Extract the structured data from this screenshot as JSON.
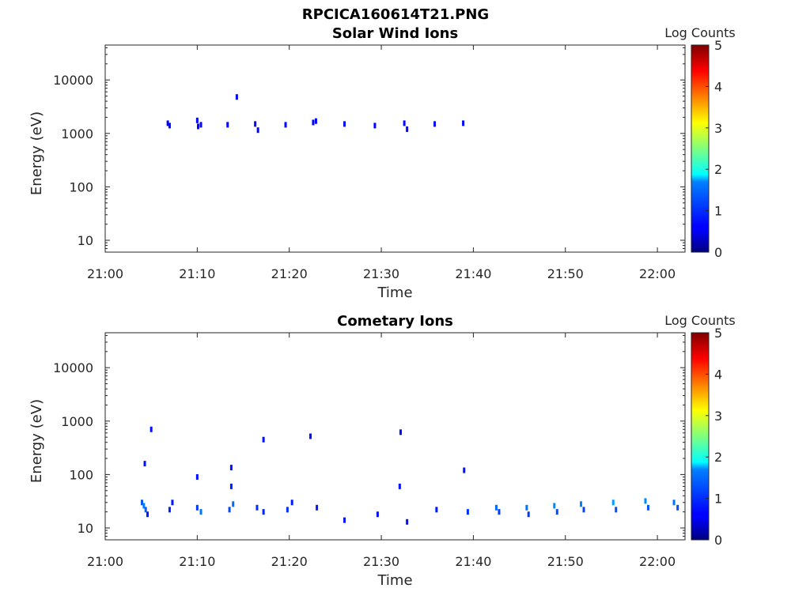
{
  "figure": {
    "title": "RPCICA160614T21.PNG"
  },
  "colormap": "jet",
  "chart_data": [
    {
      "type": "heatmap",
      "title": "Solar Wind Ions",
      "xlabel": "Time",
      "ylabel": "Energy (eV)",
      "x_ticks": [
        "21:00",
        "21:10",
        "21:20",
        "21:30",
        "21:40",
        "21:50",
        "22:00"
      ],
      "y_ticks": [
        "10",
        "100",
        "1000",
        "10000"
      ],
      "y_scale": "log",
      "xlim": [
        "21:00",
        "22:03"
      ],
      "ylim": [
        6,
        45000
      ],
      "colorbar": {
        "label": "Log Counts",
        "ticks": [
          "0",
          "1",
          "2",
          "3",
          "4",
          "5"
        ],
        "range": [
          0,
          5
        ]
      },
      "cells": [
        {
          "t": "21:06.8",
          "e": 1550,
          "c": 0.1
        },
        {
          "t": "21:07.0",
          "e": 1400,
          "c": 0.1
        },
        {
          "t": "21:10.0",
          "e": 1750,
          "c": 0.1
        },
        {
          "t": "21:10.1",
          "e": 1350,
          "c": 0.1
        },
        {
          "t": "21:10.4",
          "e": 1450,
          "c": 0.1
        },
        {
          "t": "21:13.3",
          "e": 1450,
          "c": 0.1
        },
        {
          "t": "21:14.3",
          "e": 4800,
          "c": 0.1
        },
        {
          "t": "21:16.3",
          "e": 1500,
          "c": 0.1
        },
        {
          "t": "21:16.6",
          "e": 1150,
          "c": 0.1
        },
        {
          "t": "21:19.6",
          "e": 1450,
          "c": 0.1
        },
        {
          "t": "21:22.6",
          "e": 1600,
          "c": 0.1
        },
        {
          "t": "21:22.9",
          "e": 1700,
          "c": 0.1
        },
        {
          "t": "21:26.0",
          "e": 1500,
          "c": 0.1
        },
        {
          "t": "21:29.3",
          "e": 1400,
          "c": 0.1
        },
        {
          "t": "21:32.5",
          "e": 1550,
          "c": 0.1
        },
        {
          "t": "21:32.8",
          "e": 1200,
          "c": 0.1
        },
        {
          "t": "21:35.8",
          "e": 1500,
          "c": 0.1
        },
        {
          "t": "21:38.9",
          "e": 1550,
          "c": 0.1
        }
      ]
    },
    {
      "type": "heatmap",
      "title": "Cometary Ions",
      "xlabel": "Time",
      "ylabel": "Energy (eV)",
      "x_ticks": [
        "21:00",
        "21:10",
        "21:20",
        "21:30",
        "21:40",
        "21:50",
        "22:00"
      ],
      "y_ticks": [
        "10",
        "100",
        "1000",
        "10000"
      ],
      "y_scale": "log",
      "xlim": [
        "21:00",
        "22:03"
      ],
      "ylim": [
        6,
        45000
      ],
      "colorbar": {
        "label": "Log Counts",
        "ticks": [
          "0",
          "1",
          "2",
          "3",
          "4",
          "5"
        ],
        "range": [
          0,
          5
        ]
      },
      "cells": [
        {
          "t": "21:04.0",
          "e": 30,
          "c": 0.9
        },
        {
          "t": "21:04.2",
          "e": 26,
          "c": 1.3
        },
        {
          "t": "21:04.4",
          "e": 22,
          "c": 1.0
        },
        {
          "t": "21:04.6",
          "e": 18,
          "c": 0.3
        },
        {
          "t": "21:04.3",
          "e": 160,
          "c": 0.2
        },
        {
          "t": "21:05.0",
          "e": 700,
          "c": 0.2
        },
        {
          "t": "21:07.0",
          "e": 22,
          "c": 0.4
        },
        {
          "t": "21:07.3",
          "e": 30,
          "c": 0.3
        },
        {
          "t": "21:10.0",
          "e": 24,
          "c": 0.6
        },
        {
          "t": "21:10.4",
          "e": 20,
          "c": 1.2
        },
        {
          "t": "21:10.0",
          "e": 90,
          "c": 0.2
        },
        {
          "t": "21:13.5",
          "e": 22,
          "c": 0.8
        },
        {
          "t": "21:13.9",
          "e": 28,
          "c": 1.1
        },
        {
          "t": "21:13.7",
          "e": 60,
          "c": 0.3
        },
        {
          "t": "21:13.7",
          "e": 135,
          "c": 0.2
        },
        {
          "t": "21:16.5",
          "e": 24,
          "c": 0.5
        },
        {
          "t": "21:17.2",
          "e": 20,
          "c": 0.4
        },
        {
          "t": "21:17.2",
          "e": 450,
          "c": 0.2
        },
        {
          "t": "21:19.8",
          "e": 22,
          "c": 0.5
        },
        {
          "t": "21:20.3",
          "e": 30,
          "c": 0.3
        },
        {
          "t": "21:22.3",
          "e": 520,
          "c": 0.2
        },
        {
          "t": "21:23.0",
          "e": 24,
          "c": 0.3
        },
        {
          "t": "21:26.0",
          "e": 14,
          "c": 0.2
        },
        {
          "t": "21:29.6",
          "e": 18,
          "c": 0.2
        },
        {
          "t": "21:32.1",
          "e": 620,
          "c": 0.2
        },
        {
          "t": "21:32.0",
          "e": 60,
          "c": 0.2
        },
        {
          "t": "21:32.8",
          "e": 13,
          "c": 0.2
        },
        {
          "t": "21:36.0",
          "e": 22,
          "c": 0.3
        },
        {
          "t": "21:39.0",
          "e": 120,
          "c": 0.2
        },
        {
          "t": "21:39.4",
          "e": 20,
          "c": 0.5
        },
        {
          "t": "21:42.5",
          "e": 24,
          "c": 1.1
        },
        {
          "t": "21:42.8",
          "e": 20,
          "c": 0.6
        },
        {
          "t": "21:45.8",
          "e": 24,
          "c": 1.2
        },
        {
          "t": "21:46.0",
          "e": 18,
          "c": 0.6
        },
        {
          "t": "21:48.8",
          "e": 26,
          "c": 1.4
        },
        {
          "t": "21:49.1",
          "e": 20,
          "c": 0.8
        },
        {
          "t": "21:51.7",
          "e": 28,
          "c": 1.3
        },
        {
          "t": "21:52.0",
          "e": 22,
          "c": 0.7
        },
        {
          "t": "21:55.2",
          "e": 30,
          "c": 1.6
        },
        {
          "t": "21:55.5",
          "e": 22,
          "c": 0.8
        },
        {
          "t": "21:58.7",
          "e": 32,
          "c": 1.4
        },
        {
          "t": "21:59.0",
          "e": 24,
          "c": 0.9
        },
        {
          "t": "22:01.8",
          "e": 30,
          "c": 1.2
        },
        {
          "t": "22:02.2",
          "e": 24,
          "c": 0.8
        }
      ]
    }
  ]
}
